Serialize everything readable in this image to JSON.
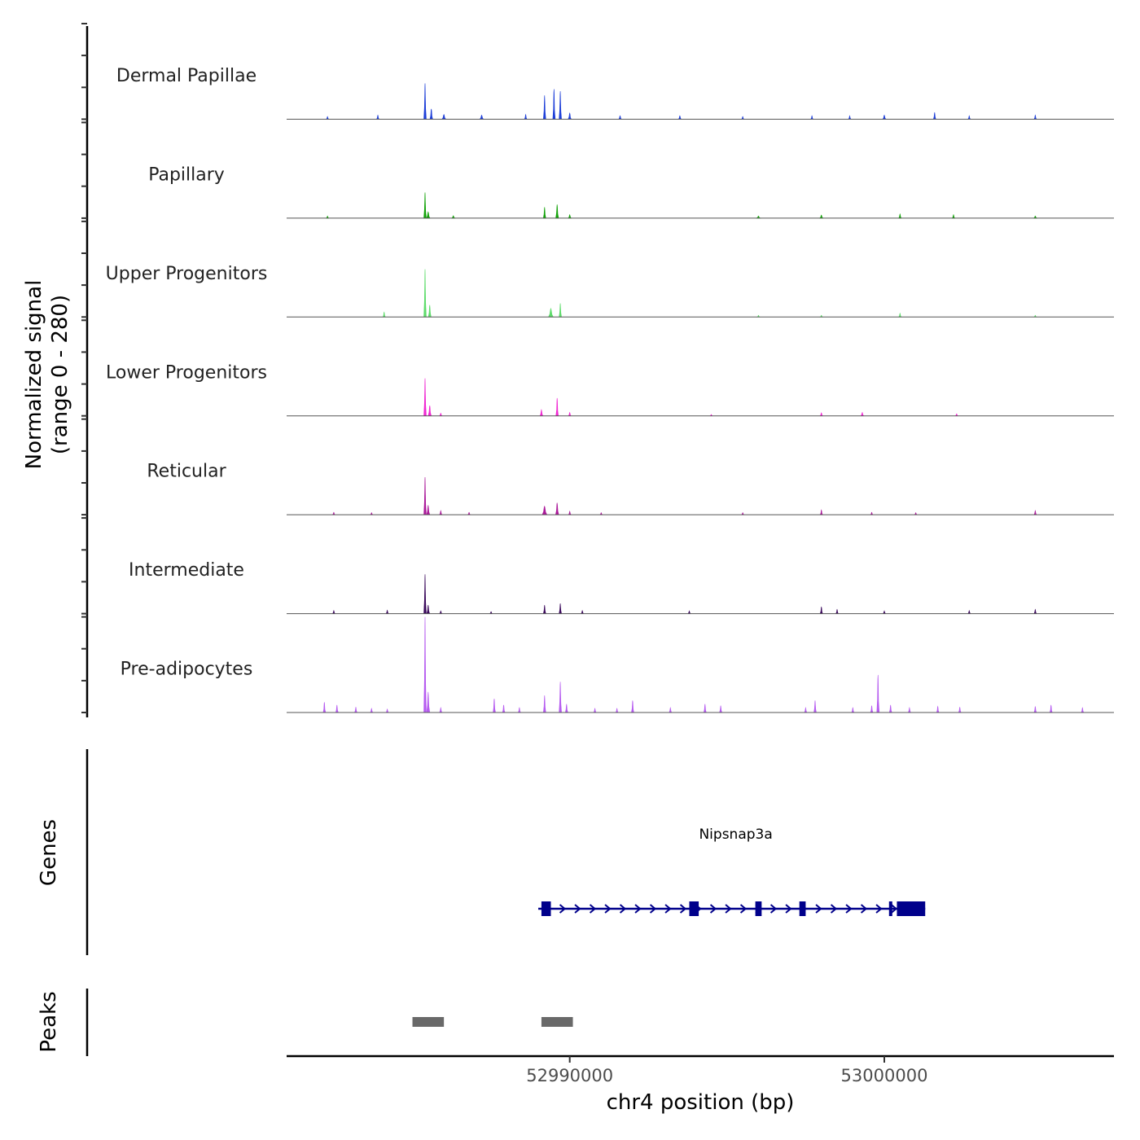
{
  "chart_data": {
    "type": "coverage-track",
    "region": {
      "chrom": "chr4",
      "start": 52981000,
      "end": 53007300
    },
    "ylabel_line1": "Normalized signal",
    "ylabel_line2": "(range 0 - 280)",
    "y_range": [
      0,
      280
    ],
    "xlabel": "chr4 position (bp)",
    "x_ticks": [
      {
        "value": 52990000,
        "label": "52990000"
      },
      {
        "value": 53000000,
        "label": "53000000"
      }
    ],
    "tracks": [
      {
        "name": "Dermal Papillae",
        "color": "#1E3FD8",
        "peaks": [
          {
            "pos": 52982300,
            "width": 60,
            "height": 8
          },
          {
            "pos": 52983900,
            "width": 80,
            "height": 12
          },
          {
            "pos": 52985400,
            "width": 45,
            "height": 105
          },
          {
            "pos": 52985600,
            "width": 90,
            "height": 30
          },
          {
            "pos": 52986000,
            "width": 120,
            "height": 14
          },
          {
            "pos": 52987200,
            "width": 120,
            "height": 12
          },
          {
            "pos": 52988600,
            "width": 80,
            "height": 14
          },
          {
            "pos": 52989200,
            "width": 55,
            "height": 70
          },
          {
            "pos": 52989500,
            "width": 50,
            "height": 88
          },
          {
            "pos": 52989700,
            "width": 50,
            "height": 82
          },
          {
            "pos": 52990000,
            "width": 100,
            "height": 18
          },
          {
            "pos": 52991600,
            "width": 90,
            "height": 10
          },
          {
            "pos": 52993500,
            "width": 90,
            "height": 10
          },
          {
            "pos": 52995500,
            "width": 60,
            "height": 8
          },
          {
            "pos": 52997700,
            "width": 70,
            "height": 10
          },
          {
            "pos": 52998900,
            "width": 80,
            "height": 10
          },
          {
            "pos": 53000000,
            "width": 100,
            "height": 12
          },
          {
            "pos": 53001600,
            "width": 50,
            "height": 20
          },
          {
            "pos": 53002700,
            "width": 60,
            "height": 10
          },
          {
            "pos": 53004800,
            "width": 60,
            "height": 12
          }
        ]
      },
      {
        "name": "Papillary",
        "color": "#14A30A",
        "peaks": [
          {
            "pos": 52982300,
            "width": 70,
            "height": 6
          },
          {
            "pos": 52985400,
            "width": 50,
            "height": 75
          },
          {
            "pos": 52985500,
            "width": 110,
            "height": 18
          },
          {
            "pos": 52986300,
            "width": 100,
            "height": 7
          },
          {
            "pos": 52989200,
            "width": 60,
            "height": 32
          },
          {
            "pos": 52989600,
            "width": 90,
            "height": 40
          },
          {
            "pos": 52990000,
            "width": 90,
            "height": 10
          },
          {
            "pos": 52996000,
            "width": 120,
            "height": 6
          },
          {
            "pos": 52998000,
            "width": 100,
            "height": 9
          },
          {
            "pos": 53000500,
            "width": 60,
            "height": 12
          },
          {
            "pos": 53002200,
            "width": 60,
            "height": 10
          },
          {
            "pos": 53004800,
            "width": 100,
            "height": 6
          }
        ]
      },
      {
        "name": "Upper Progenitors",
        "color": "#5EDC6B",
        "peaks": [
          {
            "pos": 52984100,
            "width": 50,
            "height": 14
          },
          {
            "pos": 52985400,
            "width": 45,
            "height": 140
          },
          {
            "pos": 52985550,
            "width": 90,
            "height": 35
          },
          {
            "pos": 52989400,
            "width": 150,
            "height": 25
          },
          {
            "pos": 52989700,
            "width": 60,
            "height": 40
          },
          {
            "pos": 52996000,
            "width": 80,
            "height": 5
          },
          {
            "pos": 52998000,
            "width": 70,
            "height": 5
          },
          {
            "pos": 53000500,
            "width": 60,
            "height": 11
          },
          {
            "pos": 53004800,
            "width": 70,
            "height": 5
          }
        ]
      },
      {
        "name": "Lower Progenitors",
        "color": "#F028D2",
        "peaks": [
          {
            "pos": 52985400,
            "width": 45,
            "height": 110
          },
          {
            "pos": 52985550,
            "width": 100,
            "height": 30
          },
          {
            "pos": 52985900,
            "width": 60,
            "height": 8
          },
          {
            "pos": 52989100,
            "width": 90,
            "height": 18
          },
          {
            "pos": 52989600,
            "width": 55,
            "height": 52
          },
          {
            "pos": 52990000,
            "width": 80,
            "height": 10
          },
          {
            "pos": 52994500,
            "width": 70,
            "height": 4
          },
          {
            "pos": 52998000,
            "width": 80,
            "height": 9
          },
          {
            "pos": 52999300,
            "width": 90,
            "height": 10
          },
          {
            "pos": 53002300,
            "width": 70,
            "height": 6
          }
        ]
      },
      {
        "name": "Reticular",
        "color": "#AB1A9A",
        "peaks": [
          {
            "pos": 52982500,
            "width": 80,
            "height": 7
          },
          {
            "pos": 52983700,
            "width": 80,
            "height": 6
          },
          {
            "pos": 52985400,
            "width": 45,
            "height": 110
          },
          {
            "pos": 52985500,
            "width": 100,
            "height": 28
          },
          {
            "pos": 52985900,
            "width": 60,
            "height": 12
          },
          {
            "pos": 52986800,
            "width": 80,
            "height": 7
          },
          {
            "pos": 52989200,
            "width": 150,
            "height": 25
          },
          {
            "pos": 52989600,
            "width": 100,
            "height": 35
          },
          {
            "pos": 52990000,
            "width": 70,
            "height": 10
          },
          {
            "pos": 52991000,
            "width": 80,
            "height": 6
          },
          {
            "pos": 52995500,
            "width": 70,
            "height": 6
          },
          {
            "pos": 52998000,
            "width": 70,
            "height": 14
          },
          {
            "pos": 52999600,
            "width": 70,
            "height": 7
          },
          {
            "pos": 53001000,
            "width": 80,
            "height": 6
          },
          {
            "pos": 53004800,
            "width": 60,
            "height": 12
          }
        ]
      },
      {
        "name": "Intermediate",
        "color": "#3B0A5C",
        "peaks": [
          {
            "pos": 52982500,
            "width": 70,
            "height": 9
          },
          {
            "pos": 52984200,
            "width": 60,
            "height": 10
          },
          {
            "pos": 52985400,
            "width": 40,
            "height": 115
          },
          {
            "pos": 52985500,
            "width": 90,
            "height": 25
          },
          {
            "pos": 52985900,
            "width": 50,
            "height": 8
          },
          {
            "pos": 52987500,
            "width": 70,
            "height": 6
          },
          {
            "pos": 52989200,
            "width": 70,
            "height": 25
          },
          {
            "pos": 52989700,
            "width": 70,
            "height": 30
          },
          {
            "pos": 52990400,
            "width": 60,
            "height": 9
          },
          {
            "pos": 52993800,
            "width": 60,
            "height": 8
          },
          {
            "pos": 52998000,
            "width": 60,
            "height": 20
          },
          {
            "pos": 52998500,
            "width": 60,
            "height": 12
          },
          {
            "pos": 53000000,
            "width": 60,
            "height": 8
          },
          {
            "pos": 53002700,
            "width": 70,
            "height": 9
          },
          {
            "pos": 53004800,
            "width": 60,
            "height": 12
          }
        ]
      },
      {
        "name": "Pre-adipocytes",
        "color": "#B65CF0",
        "peaks": [
          {
            "pos": 52982200,
            "width": 50,
            "height": 30
          },
          {
            "pos": 52982600,
            "width": 80,
            "height": 22
          },
          {
            "pos": 52983200,
            "width": 60,
            "height": 16
          },
          {
            "pos": 52983700,
            "width": 50,
            "height": 12
          },
          {
            "pos": 52984200,
            "width": 40,
            "height": 10
          },
          {
            "pos": 52985400,
            "width": 45,
            "height": 280
          },
          {
            "pos": 52985500,
            "width": 100,
            "height": 60
          },
          {
            "pos": 52985900,
            "width": 50,
            "height": 14
          },
          {
            "pos": 52987600,
            "width": 60,
            "height": 40
          },
          {
            "pos": 52987900,
            "width": 50,
            "height": 22
          },
          {
            "pos": 52988400,
            "width": 40,
            "height": 14
          },
          {
            "pos": 52989200,
            "width": 60,
            "height": 50
          },
          {
            "pos": 52989700,
            "width": 55,
            "height": 90
          },
          {
            "pos": 52989900,
            "width": 80,
            "height": 25
          },
          {
            "pos": 52990800,
            "width": 40,
            "height": 12
          },
          {
            "pos": 52991500,
            "width": 40,
            "height": 12
          },
          {
            "pos": 52992000,
            "width": 40,
            "height": 35
          },
          {
            "pos": 52993200,
            "width": 40,
            "height": 14
          },
          {
            "pos": 52994300,
            "width": 50,
            "height": 25
          },
          {
            "pos": 52994800,
            "width": 40,
            "height": 20
          },
          {
            "pos": 52997500,
            "width": 40,
            "height": 14
          },
          {
            "pos": 52997800,
            "width": 40,
            "height": 35
          },
          {
            "pos": 52999000,
            "width": 40,
            "height": 14
          },
          {
            "pos": 52999600,
            "width": 40,
            "height": 20
          },
          {
            "pos": 52999800,
            "width": 70,
            "height": 110
          },
          {
            "pos": 53000200,
            "width": 50,
            "height": 22
          },
          {
            "pos": 53000800,
            "width": 40,
            "height": 14
          },
          {
            "pos": 53001700,
            "width": 40,
            "height": 18
          },
          {
            "pos": 53002400,
            "width": 40,
            "height": 16
          },
          {
            "pos": 53004800,
            "width": 40,
            "height": 18
          },
          {
            "pos": 53005300,
            "width": 60,
            "height": 22
          },
          {
            "pos": 53006300,
            "width": 40,
            "height": 14
          }
        ]
      }
    ],
    "genes": [
      {
        "name": "Nipsnap3a",
        "strand": "+",
        "color": "#00008B",
        "start": 52989000,
        "end": 53001300,
        "exons": [
          [
            52989100,
            52989400
          ],
          [
            52993800,
            52994100
          ],
          [
            52995900,
            52996100
          ],
          [
            52997300,
            52997500
          ],
          [
            53000150,
            53000250
          ],
          [
            53000400,
            53001300
          ]
        ]
      }
    ],
    "peaks_track": {
      "label": "Peaks",
      "color": "#696969",
      "regions": [
        [
          52985000,
          52986000
        ],
        [
          52989100,
          52990100
        ]
      ]
    },
    "genes_track_label": "Genes"
  }
}
